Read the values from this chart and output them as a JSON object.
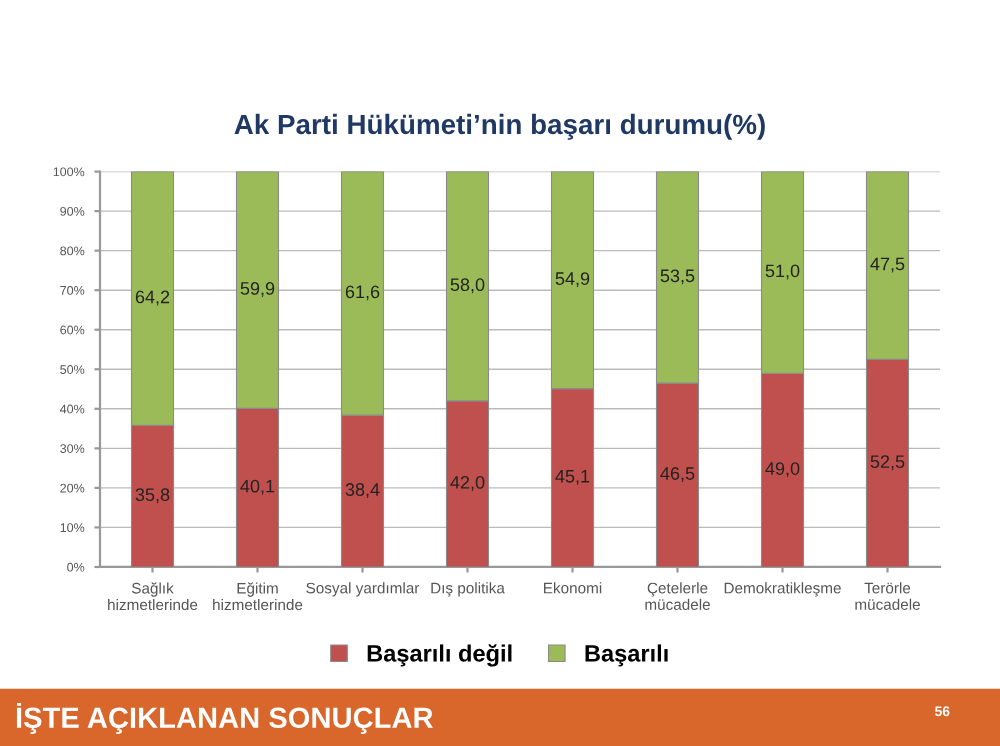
{
  "chart_data": {
    "type": "bar",
    "stacked": true,
    "title": "Ak Parti Hükümeti’nin başarı durumu(%)",
    "categories": [
      "Sağlık\nhizmetlerinde",
      "Eğitim\nhizmetlerinde",
      "Sosyal yardımlar",
      "Dış politika",
      "Ekonomi",
      "Çetelerle\nmücadele",
      "Demokratikleşme",
      "Terörle\nmücadele"
    ],
    "series": [
      {
        "name": "Başarılı değil",
        "color": "#c0504d",
        "values": [
          35.8,
          40.1,
          38.4,
          42.0,
          45.1,
          46.5,
          49.0,
          52.5
        ],
        "value_labels": [
          "35,8",
          "40,1",
          "38,4",
          "42,0",
          "45,1",
          "46,5",
          "49,0",
          "52,5"
        ]
      },
      {
        "name": "Başarılı",
        "color": "#9bbb59",
        "values": [
          64.2,
          59.9,
          61.6,
          58.0,
          54.9,
          53.5,
          51.0,
          47.5
        ],
        "value_labels": [
          "64,2",
          "59,9",
          "61,6",
          "58,0",
          "54,9",
          "53,5",
          "51,0",
          "47,5"
        ]
      }
    ],
    "ylim": [
      0,
      100
    ],
    "yticks": [
      {
        "value": 0,
        "label": "0%"
      },
      {
        "value": 10,
        "label": "10%"
      },
      {
        "value": 20,
        "label": "20%"
      },
      {
        "value": 30,
        "label": "30%"
      },
      {
        "value": 40,
        "label": "40%"
      },
      {
        "value": 50,
        "label": "50%"
      },
      {
        "value": 60,
        "label": "60%"
      },
      {
        "value": 70,
        "label": "70%"
      },
      {
        "value": 80,
        "label": "80%"
      },
      {
        "value": 90,
        "label": "90%"
      },
      {
        "value": 100,
        "label": "100%"
      }
    ],
    "grid": "y",
    "legend": "bottom",
    "annotations": [
      "İŞTE AÇIKLANAN SONUÇLAR",
      "56"
    ]
  }
}
